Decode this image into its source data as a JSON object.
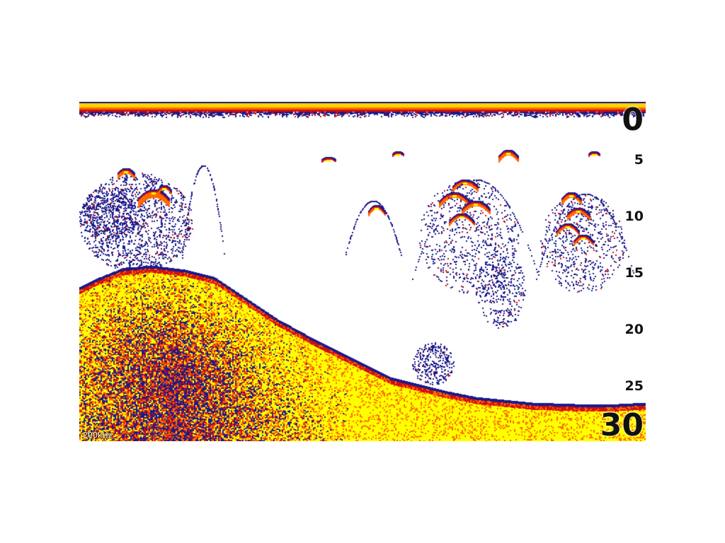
{
  "sonar": {
    "frequency_label": "200kHz",
    "depth_scale": {
      "min_label": "0",
      "max_label": "30",
      "ticks": [
        "5",
        "10",
        "15",
        "20",
        "25"
      ]
    },
    "colors": {
      "surface": "#ffd400",
      "bottom_hard": "#ffff00",
      "mid_return": "#ff6a00",
      "strong_return": "#d01010",
      "weak_return": "#1a1a8c",
      "background": "#ffffff"
    }
  }
}
